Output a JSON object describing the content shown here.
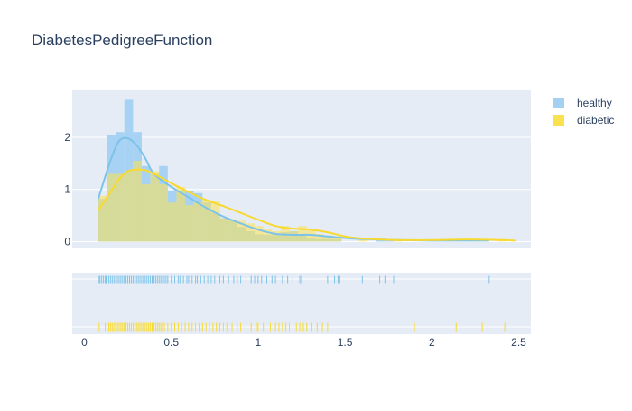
{
  "chart_data": {
    "type": "histogram-distplot",
    "title": "DiabetesPedigreeFunction",
    "xlabel": "",
    "ylabel": "",
    "xlim": [
      -0.07,
      2.57
    ],
    "ylim": [
      -0.13,
      2.9
    ],
    "x_ticks": [
      0,
      0.5,
      1,
      1.5,
      2,
      2.5
    ],
    "x_tick_labels": [
      "0",
      "0.5",
      "1",
      "1.5",
      "2",
      "2.5"
    ],
    "y_ticks": [
      0,
      1,
      2
    ],
    "y_tick_labels": [
      "0",
      "1",
      "2"
    ],
    "bin_width": 0.05,
    "grid": true,
    "legend_position": "top-right",
    "series": [
      {
        "name": "healthy",
        "color": "#7cc3ea",
        "fill_color": "#a4d1f2",
        "bins_start": [
          0.08,
          0.13,
          0.18,
          0.23,
          0.28,
          0.33,
          0.38,
          0.43,
          0.48,
          0.53,
          0.58,
          0.63,
          0.68,
          0.73,
          0.78,
          0.83,
          0.88,
          0.93,
          0.98,
          1.03,
          1.08,
          1.13,
          1.18,
          1.23,
          1.28,
          1.33,
          1.38,
          1.43,
          1.68,
          1.73
        ],
        "bins_density": [
          0.82,
          2.05,
          2.1,
          2.72,
          2.1,
          1.45,
          1.3,
          1.45,
          0.98,
          0.98,
          0.97,
          0.93,
          0.75,
          0.55,
          0.45,
          0.4,
          0.28,
          0.2,
          0.14,
          0.13,
          0.15,
          0.18,
          0.2,
          0.13,
          0.07,
          0.05,
          0.05,
          0.05,
          0.07,
          0.05
        ],
        "kde_x": [
          0.08,
          0.15,
          0.2,
          0.25,
          0.3,
          0.35,
          0.4,
          0.5,
          0.6,
          0.7,
          0.8,
          0.9,
          1.0,
          1.1,
          1.2,
          1.3,
          1.4,
          1.5,
          1.6,
          1.8,
          2.0,
          2.2,
          2.33
        ],
        "kde_y": [
          0.82,
          1.55,
          1.93,
          1.98,
          1.85,
          1.6,
          1.3,
          1.05,
          0.85,
          0.65,
          0.48,
          0.35,
          0.23,
          0.15,
          0.13,
          0.13,
          0.1,
          0.07,
          0.05,
          0.03,
          0.02,
          0.02,
          0.02
        ],
        "rug": [
          0.085,
          0.09,
          0.1,
          0.11,
          0.12,
          0.125,
          0.13,
          0.14,
          0.15,
          0.16,
          0.17,
          0.18,
          0.19,
          0.2,
          0.21,
          0.22,
          0.23,
          0.24,
          0.25,
          0.26,
          0.27,
          0.28,
          0.29,
          0.3,
          0.31,
          0.32,
          0.33,
          0.34,
          0.35,
          0.36,
          0.37,
          0.38,
          0.39,
          0.4,
          0.41,
          0.42,
          0.43,
          0.44,
          0.45,
          0.46,
          0.47,
          0.48,
          0.5,
          0.52,
          0.54,
          0.55,
          0.57,
          0.59,
          0.6,
          0.62,
          0.64,
          0.65,
          0.67,
          0.69,
          0.71,
          0.73,
          0.75,
          0.78,
          0.8,
          0.83,
          0.86,
          0.88,
          0.9,
          0.93,
          0.96,
          0.98,
          1.0,
          1.02,
          1.05,
          1.08,
          1.1,
          1.14,
          1.17,
          1.2,
          1.24,
          1.25,
          1.4,
          1.44,
          1.46,
          1.47,
          1.6,
          1.7,
          1.73,
          1.78,
          2.33
        ]
      },
      {
        "name": "diabetic",
        "color": "#f8d92f",
        "fill_color": "#fce14e",
        "bins_start": [
          0.08,
          0.13,
          0.18,
          0.23,
          0.28,
          0.33,
          0.38,
          0.43,
          0.48,
          0.53,
          0.58,
          0.63,
          0.68,
          0.73,
          0.78,
          0.83,
          0.88,
          0.93,
          0.98,
          1.03,
          1.08,
          1.13,
          1.18,
          1.23,
          1.28,
          1.33,
          1.38,
          1.43,
          1.58,
          1.78,
          2.38
        ],
        "bins_density": [
          0.88,
          1.3,
          1.3,
          1.35,
          1.55,
          1.1,
          1.35,
          1.1,
          0.75,
          1.05,
          0.7,
          0.75,
          0.8,
          0.78,
          0.45,
          0.43,
          0.4,
          0.35,
          0.3,
          0.25,
          0.2,
          0.3,
          0.2,
          0.3,
          0.22,
          0.15,
          0.12,
          0.1,
          0.05,
          0.02,
          0.05
        ],
        "kde_x": [
          0.08,
          0.15,
          0.2,
          0.25,
          0.3,
          0.35,
          0.4,
          0.5,
          0.6,
          0.7,
          0.8,
          0.9,
          1.0,
          1.1,
          1.2,
          1.3,
          1.4,
          1.5,
          1.6,
          1.8,
          2.0,
          2.2,
          2.4,
          2.48
        ],
        "kde_y": [
          0.6,
          0.95,
          1.2,
          1.35,
          1.38,
          1.37,
          1.3,
          1.12,
          0.95,
          0.8,
          0.68,
          0.55,
          0.42,
          0.3,
          0.25,
          0.23,
          0.18,
          0.1,
          0.06,
          0.03,
          0.03,
          0.04,
          0.03,
          0.02
        ],
        "rug": [
          0.085,
          0.12,
          0.13,
          0.14,
          0.15,
          0.16,
          0.17,
          0.18,
          0.19,
          0.2,
          0.21,
          0.22,
          0.23,
          0.24,
          0.25,
          0.26,
          0.27,
          0.28,
          0.29,
          0.3,
          0.31,
          0.32,
          0.33,
          0.34,
          0.35,
          0.36,
          0.37,
          0.38,
          0.39,
          0.4,
          0.41,
          0.42,
          0.43,
          0.44,
          0.45,
          0.46,
          0.48,
          0.5,
          0.52,
          0.54,
          0.56,
          0.58,
          0.6,
          0.62,
          0.64,
          0.66,
          0.68,
          0.7,
          0.72,
          0.74,
          0.76,
          0.78,
          0.8,
          0.82,
          0.85,
          0.88,
          0.9,
          0.93,
          0.96,
          0.99,
          1.0,
          1.03,
          1.07,
          1.1,
          1.12,
          1.14,
          1.16,
          1.18,
          1.22,
          1.24,
          1.26,
          1.28,
          1.31,
          1.34,
          1.37,
          1.4,
          1.9,
          2.14,
          2.29,
          2.42
        ]
      }
    ]
  }
}
